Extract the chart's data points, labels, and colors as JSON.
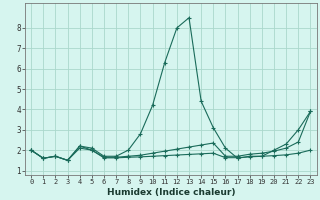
{
  "title": "",
  "xlabel": "Humidex (Indice chaleur)",
  "ylabel": "",
  "xlim": [
    -0.5,
    23.5
  ],
  "ylim": [
    0.8,
    9.2
  ],
  "yticks": [
    1,
    2,
    3,
    4,
    5,
    6,
    7,
    8
  ],
  "xticks": [
    0,
    1,
    2,
    3,
    4,
    5,
    6,
    7,
    8,
    9,
    10,
    11,
    12,
    13,
    14,
    15,
    16,
    17,
    18,
    19,
    20,
    21,
    22,
    23
  ],
  "background_color": "#d6f5ef",
  "grid_color": "#aad8cc",
  "line_color": "#1a6b5a",
  "series": [
    {
      "x": [
        0,
        1,
        2,
        3,
        4,
        5,
        6,
        7,
        8,
        9,
        10,
        11,
        12,
        13,
        14,
        15,
        16,
        17,
        18,
        19,
        20,
        21,
        22,
        23
      ],
      "y": [
        2.0,
        1.6,
        1.7,
        1.5,
        2.2,
        2.1,
        1.7,
        1.7,
        2.0,
        2.8,
        4.2,
        6.3,
        8.0,
        8.5,
        4.4,
        3.1,
        2.1,
        1.6,
        1.7,
        1.7,
        2.0,
        2.3,
        3.0,
        3.9
      ]
    },
    {
      "x": [
        0,
        1,
        2,
        3,
        4,
        5,
        6,
        7,
        8,
        9,
        10,
        11,
        12,
        13,
        14,
        15,
        16,
        17,
        18,
        19,
        20,
        21,
        22,
        23
      ],
      "y": [
        2.0,
        1.6,
        1.7,
        1.5,
        2.2,
        2.0,
        1.65,
        1.65,
        1.7,
        1.75,
        1.85,
        1.95,
        2.05,
        2.15,
        2.25,
        2.35,
        1.7,
        1.7,
        1.8,
        1.85,
        1.95,
        2.1,
        2.4,
        3.9
      ]
    },
    {
      "x": [
        0,
        1,
        2,
        3,
        4,
        5,
        6,
        7,
        8,
        9,
        10,
        11,
        12,
        13,
        14,
        15,
        16,
        17,
        18,
        19,
        20,
        21,
        22,
        23
      ],
      "y": [
        2.0,
        1.6,
        1.7,
        1.5,
        2.1,
        2.0,
        1.62,
        1.62,
        1.65,
        1.67,
        1.7,
        1.73,
        1.76,
        1.79,
        1.82,
        1.85,
        1.63,
        1.63,
        1.67,
        1.7,
        1.73,
        1.77,
        1.85,
        2.0
      ]
    }
  ]
}
